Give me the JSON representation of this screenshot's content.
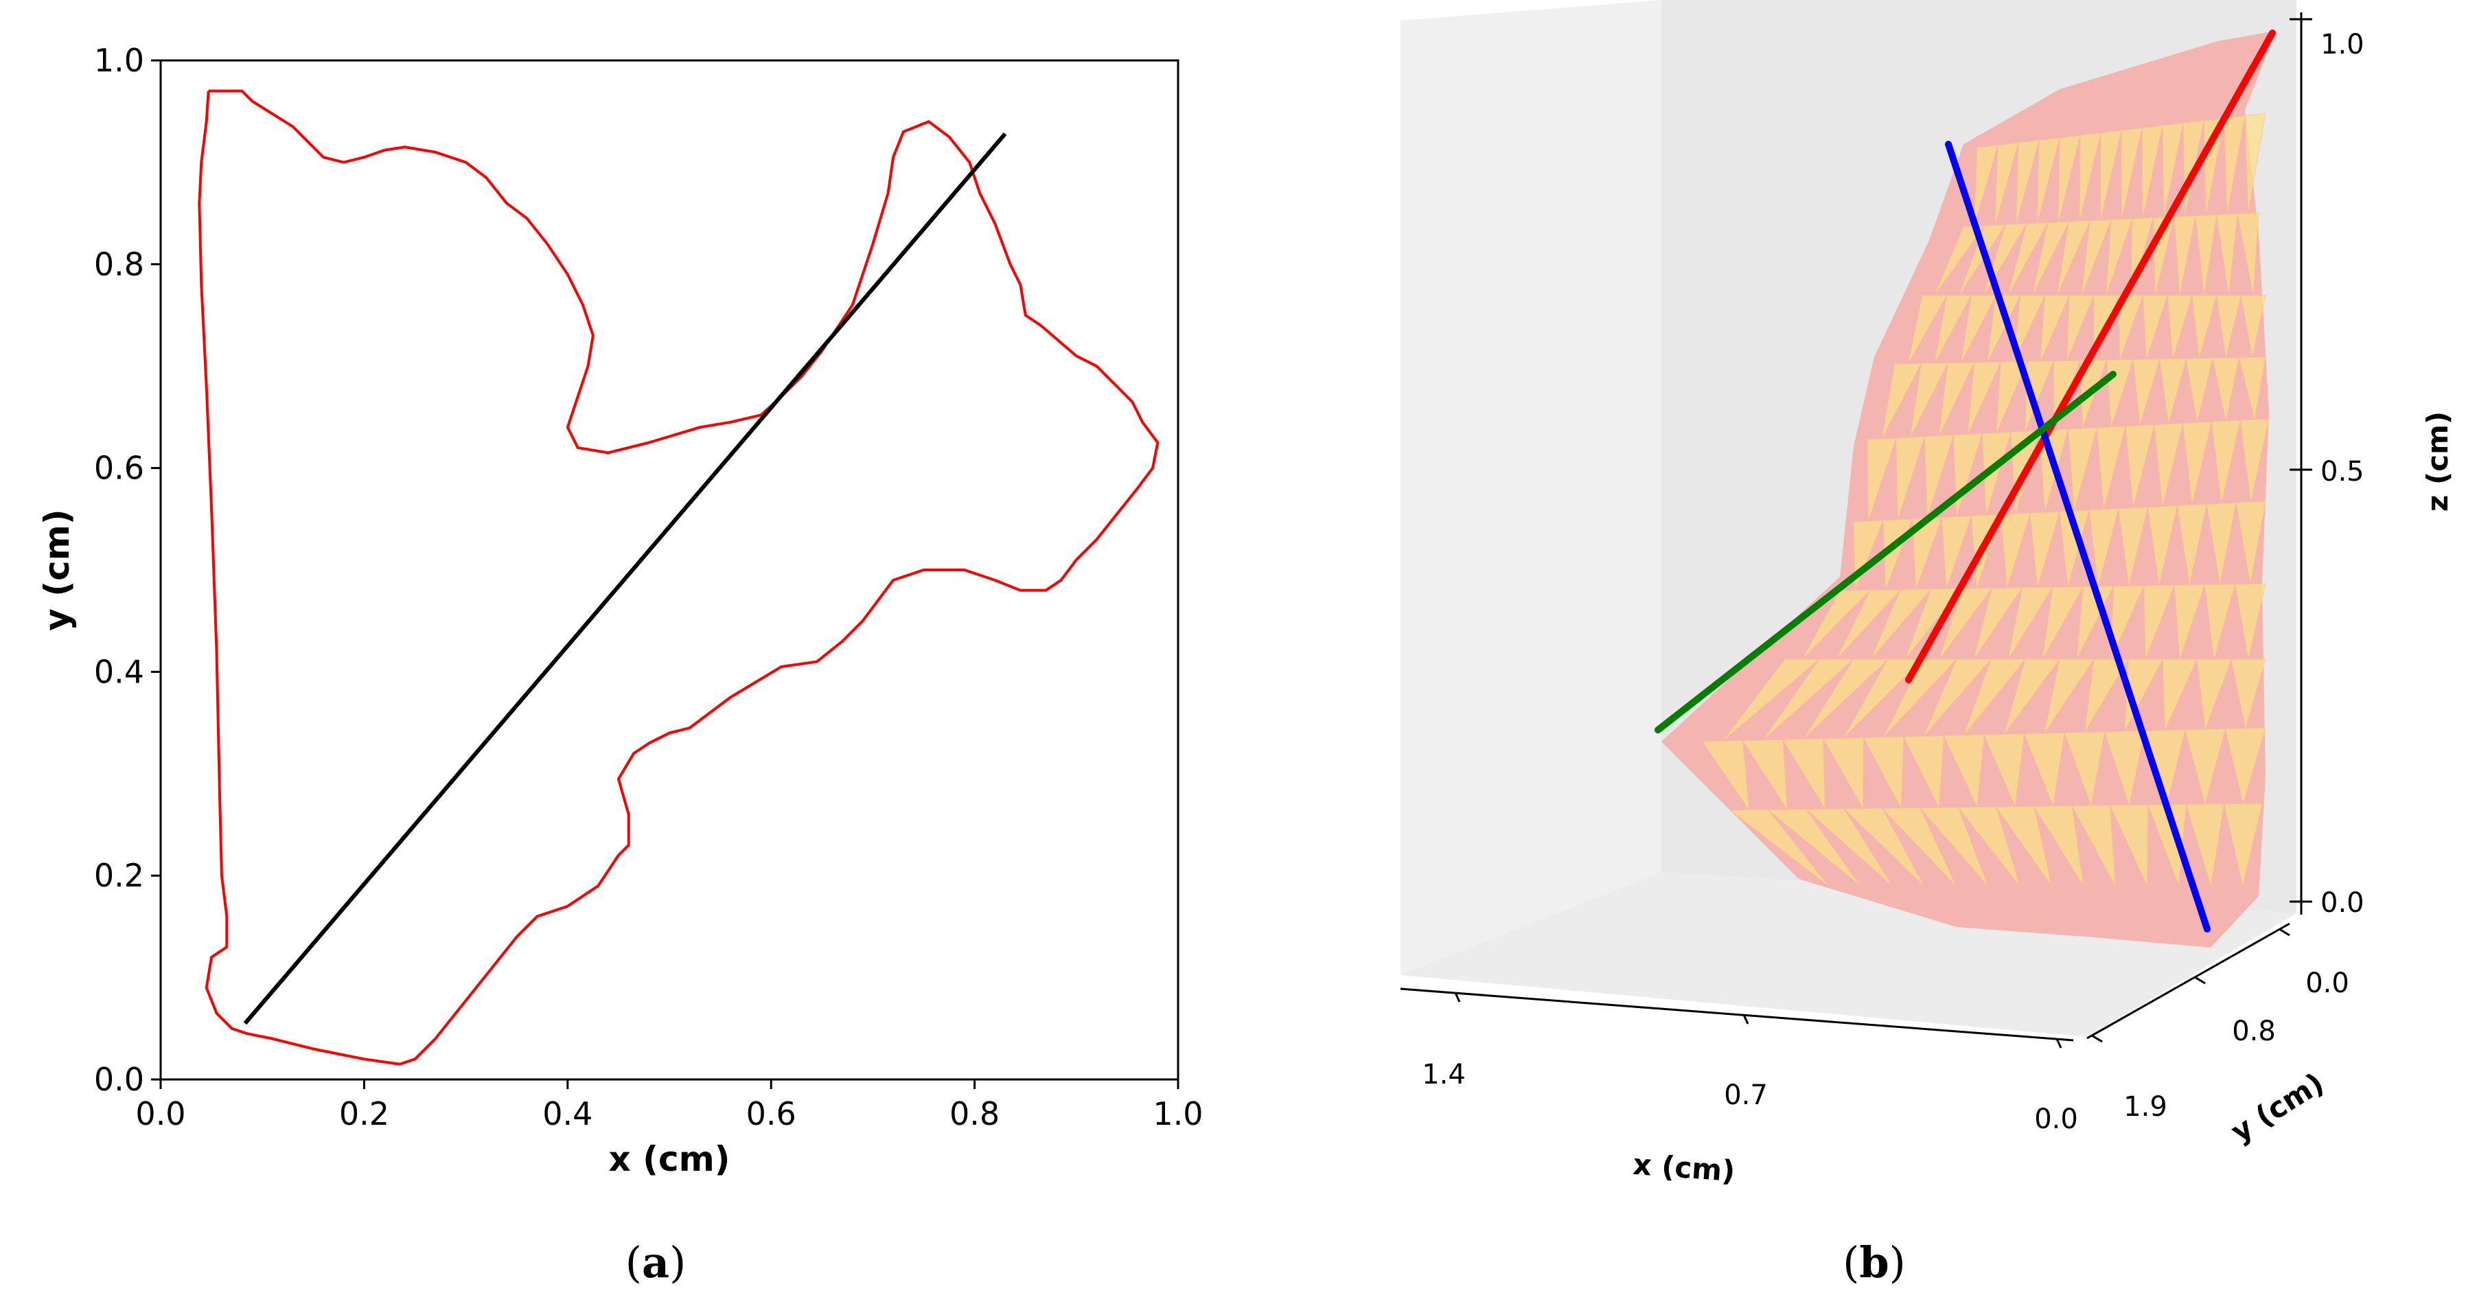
{
  "chart_data": [
    {
      "type": "line",
      "panel": "a",
      "caption": {
        "open": "(",
        "letter": "a",
        "close": ")"
      },
      "xlabel": "x (cm)",
      "ylabel": "y (cm)",
      "xlim": [
        0.0,
        1.0
      ],
      "ylim": [
        0.0,
        1.0
      ],
      "xticks": [
        "0.0",
        "0.2",
        "0.4",
        "0.6",
        "0.8",
        "1.0"
      ],
      "yticks": [
        "0.0",
        "0.2",
        "0.4",
        "0.6",
        "0.8",
        "1.0"
      ],
      "grid": false,
      "series": [
        {
          "name": "boundary",
          "color": "#ff0000",
          "x": [
            0.047,
            0.08,
            0.09,
            0.13,
            0.16,
            0.18,
            0.2,
            0.22,
            0.24,
            0.27,
            0.3,
            0.32,
            0.34,
            0.36,
            0.38,
            0.4,
            0.415,
            0.425,
            0.42,
            0.41,
            0.4,
            0.41,
            0.44,
            0.48,
            0.53,
            0.56,
            0.59,
            0.61,
            0.63,
            0.65,
            0.68,
            0.7,
            0.715,
            0.72,
            0.73,
            0.755,
            0.775,
            0.795,
            0.805,
            0.82,
            0.835,
            0.845,
            0.85,
            0.865,
            0.9,
            0.92,
            0.94,
            0.955,
            0.965,
            0.98,
            0.975,
            0.96,
            0.94,
            0.92,
            0.9,
            0.885,
            0.87,
            0.845,
            0.82,
            0.79,
            0.75,
            0.72,
            0.705,
            0.69,
            0.67,
            0.645,
            0.61,
            0.585,
            0.56,
            0.54,
            0.52,
            0.5,
            0.48,
            0.465,
            0.45,
            0.46,
            0.46,
            0.45,
            0.43,
            0.4,
            0.37,
            0.35,
            0.33,
            0.31,
            0.29,
            0.27,
            0.25,
            0.235,
            0.2,
            0.15,
            0.11,
            0.085,
            0.07,
            0.055,
            0.045,
            0.05,
            0.065,
            0.065,
            0.06,
            0.058,
            0.055,
            0.05,
            0.045,
            0.04,
            0.038,
            0.04,
            0.045,
            0.047
          ],
          "y": [
            0.97,
            0.97,
            0.96,
            0.935,
            0.905,
            0.9,
            0.905,
            0.912,
            0.915,
            0.91,
            0.9,
            0.885,
            0.86,
            0.845,
            0.82,
            0.79,
            0.76,
            0.73,
            0.7,
            0.67,
            0.64,
            0.62,
            0.615,
            0.625,
            0.64,
            0.645,
            0.652,
            0.67,
            0.69,
            0.715,
            0.76,
            0.82,
            0.87,
            0.905,
            0.93,
            0.94,
            0.925,
            0.9,
            0.87,
            0.84,
            0.8,
            0.78,
            0.75,
            0.74,
            0.71,
            0.7,
            0.68,
            0.665,
            0.645,
            0.625,
            0.6,
            0.58,
            0.555,
            0.53,
            0.51,
            0.49,
            0.48,
            0.48,
            0.49,
            0.5,
            0.5,
            0.49,
            0.47,
            0.45,
            0.43,
            0.41,
            0.405,
            0.39,
            0.375,
            0.36,
            0.345,
            0.34,
            0.33,
            0.32,
            0.295,
            0.26,
            0.23,
            0.22,
            0.19,
            0.17,
            0.16,
            0.14,
            0.115,
            0.09,
            0.065,
            0.04,
            0.02,
            0.015,
            0.02,
            0.03,
            0.04,
            0.045,
            0.05,
            0.065,
            0.09,
            0.12,
            0.13,
            0.16,
            0.2,
            0.28,
            0.42,
            0.56,
            0.68,
            0.78,
            0.86,
            0.9,
            0.94,
            0.97
          ]
        },
        {
          "name": "diameter",
          "color": "#000000",
          "x": [
            0.083,
            0.83
          ],
          "y": [
            0.055,
            0.928
          ]
        }
      ]
    },
    {
      "type": "surface3d",
      "panel": "b",
      "caption": {
        "open": "(",
        "letter": "b",
        "close": ")"
      },
      "xlabel": "x (cm)",
      "ylabel": "y (cm)",
      "zlabel": "z (cm)",
      "xticks": [
        "1.4",
        "0.7",
        "0.0"
      ],
      "yticks": [
        "0.0",
        "0.8",
        "1.9"
      ],
      "zticks": [
        "0.0",
        "0.5",
        "1.0"
      ],
      "surface_colors": [
        "#f4a6ae",
        "#fbe08a"
      ],
      "principal_axes": [
        {
          "name": "axis-red",
          "color": "#ff0000"
        },
        {
          "name": "axis-blue",
          "color": "#0000ff"
        },
        {
          "name": "axis-green",
          "color": "#008000"
        }
      ]
    }
  ]
}
